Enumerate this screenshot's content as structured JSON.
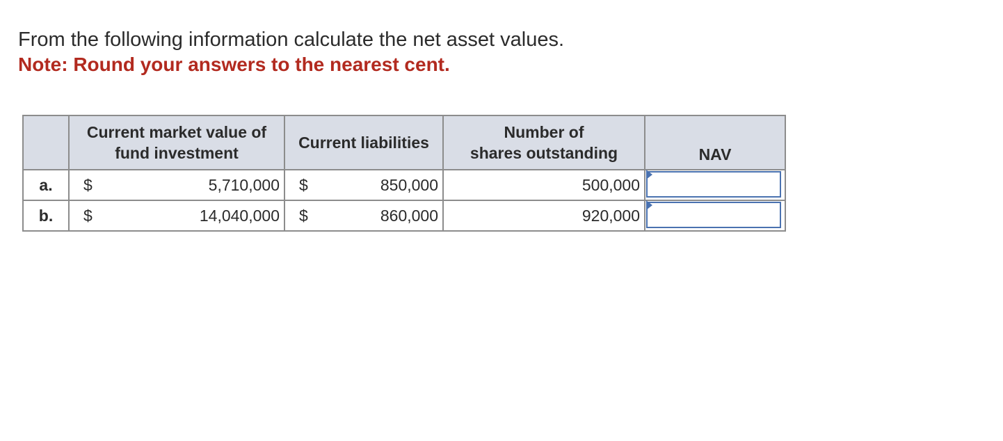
{
  "question": {
    "prompt": "From the following information calculate the net asset values.",
    "note": "Note: Round your answers to the nearest cent."
  },
  "table": {
    "headers": {
      "row_label": "",
      "market_value": [
        "Current market value of",
        "fund investment"
      ],
      "liabilities": "Current liabilities",
      "shares": [
        "Number of",
        "shares outstanding"
      ],
      "nav": "NAV"
    },
    "rows": [
      {
        "label": "a.",
        "market_currency": "$",
        "market_value": "5,710,000",
        "liabilities_currency": "$",
        "liabilities": "850,000",
        "shares": "500,000",
        "nav_value": ""
      },
      {
        "label": "b.",
        "market_currency": "$",
        "market_value": "14,040,000",
        "liabilities_currency": "$",
        "liabilities": "860,000",
        "shares": "920,000",
        "nav_value": ""
      }
    ]
  },
  "colors": {
    "note": "#b22a1f",
    "header_bg": "#d9dde6",
    "input_border": "#4a72b0"
  }
}
